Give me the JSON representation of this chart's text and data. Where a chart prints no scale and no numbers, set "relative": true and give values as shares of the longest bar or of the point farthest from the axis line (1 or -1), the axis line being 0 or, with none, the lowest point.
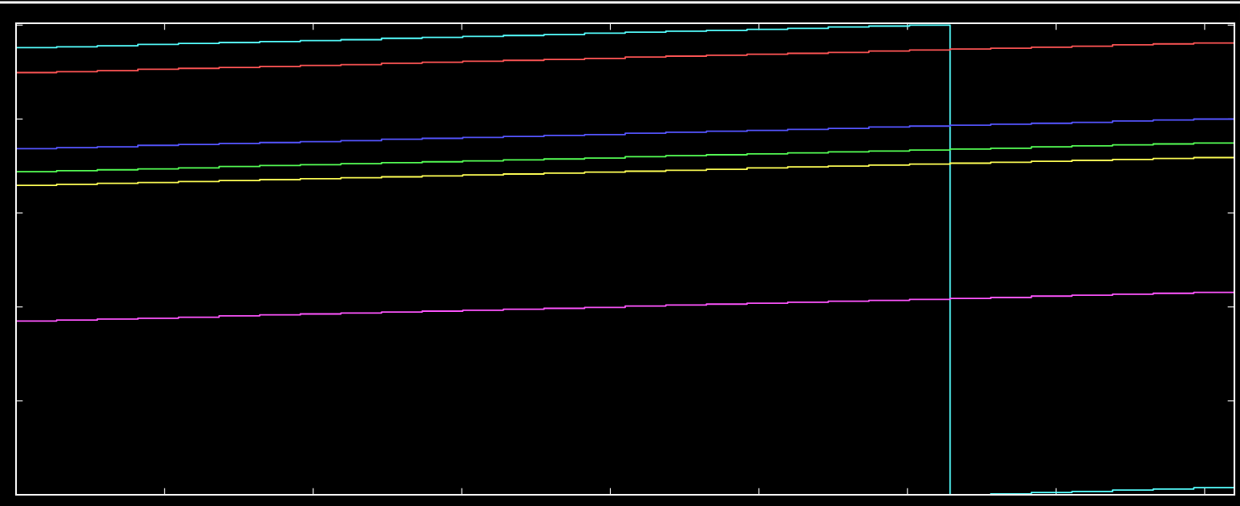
{
  "chart_data": {
    "type": "step",
    "relative": true,
    "tick_labels": false,
    "grid": false,
    "legend": false,
    "categories": [
      null,
      null,
      null,
      null,
      null,
      null,
      null,
      null,
      null,
      null,
      null,
      null,
      null,
      null,
      null,
      null,
      null,
      null,
      null,
      null,
      null,
      null,
      null,
      null,
      null,
      null,
      null,
      null,
      null,
      null,
      null
    ],
    "series": [
      {
        "color": "#55ffff",
        "values": [
          0.952,
          0.954,
          0.956,
          0.959,
          0.961,
          0.963,
          0.965,
          0.967,
          0.969,
          0.972,
          0.974,
          0.976,
          0.978,
          0.98,
          0.983,
          0.985,
          0.987,
          0.989,
          0.991,
          0.993,
          0.996,
          0.998,
          1.0,
          0,
          0.002,
          0.005,
          0.007,
          0.01,
          0.012,
          0.015,
          0.017
        ]
      },
      {
        "color": "#ff5555",
        "values": [
          0.899,
          0.901,
          0.903,
          0.906,
          0.908,
          0.91,
          0.912,
          0.914,
          0.916,
          0.919,
          0.921,
          0.923,
          0.925,
          0.927,
          0.929,
          0.932,
          0.934,
          0.936,
          0.938,
          0.94,
          0.942,
          0.945,
          0.947,
          0.949,
          0.951,
          0.953,
          0.955,
          0.958,
          0.96,
          0.962,
          0.964
        ]
      },
      {
        "color": "#5555ff",
        "values": [
          0.737,
          0.739,
          0.741,
          0.744,
          0.746,
          0.748,
          0.75,
          0.752,
          0.754,
          0.757,
          0.759,
          0.761,
          0.763,
          0.765,
          0.767,
          0.77,
          0.772,
          0.774,
          0.776,
          0.778,
          0.78,
          0.783,
          0.785,
          0.787,
          0.789,
          0.791,
          0.793,
          0.796,
          0.798,
          0.8,
          0.802
        ]
      },
      {
        "color": "#55ff55",
        "values": [
          0.688,
          0.69,
          0.692,
          0.694,
          0.696,
          0.699,
          0.701,
          0.703,
          0.705,
          0.707,
          0.709,
          0.711,
          0.713,
          0.715,
          0.717,
          0.72,
          0.722,
          0.724,
          0.726,
          0.728,
          0.73,
          0.732,
          0.734,
          0.736,
          0.738,
          0.741,
          0.743,
          0.745,
          0.747,
          0.749,
          0.751
        ]
      },
      {
        "color": "#ffff55",
        "values": [
          0.659,
          0.661,
          0.663,
          0.665,
          0.667,
          0.669,
          0.671,
          0.673,
          0.675,
          0.677,
          0.679,
          0.681,
          0.683,
          0.685,
          0.687,
          0.689,
          0.691,
          0.693,
          0.696,
          0.698,
          0.7,
          0.702,
          0.704,
          0.706,
          0.708,
          0.71,
          0.712,
          0.714,
          0.716,
          0.718,
          0.72
        ]
      },
      {
        "color": "#ff55ff",
        "values": [
          0.37,
          0.372,
          0.374,
          0.376,
          0.378,
          0.381,
          0.383,
          0.385,
          0.387,
          0.389,
          0.391,
          0.393,
          0.395,
          0.397,
          0.399,
          0.402,
          0.404,
          0.406,
          0.408,
          0.41,
          0.412,
          0.414,
          0.416,
          0.418,
          0.42,
          0.423,
          0.425,
          0.427,
          0.429,
          0.431,
          0.433
        ]
      }
    ]
  }
}
